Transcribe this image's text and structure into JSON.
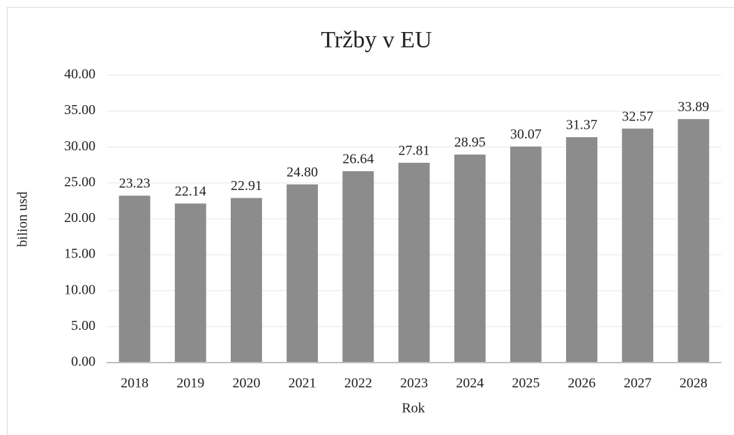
{
  "chart_data": {
    "type": "bar",
    "title": "Tržby v EU",
    "x_label": "Rok",
    "y_label": "bilion usd",
    "categories": [
      "2018",
      "2019",
      "2020",
      "2021",
      "2022",
      "2023",
      "2024",
      "2025",
      "2026",
      "2027",
      "2028"
    ],
    "values": [
      23.23,
      22.14,
      22.91,
      24.8,
      26.64,
      27.81,
      28.95,
      30.07,
      31.37,
      32.57,
      33.89
    ],
    "value_labels": [
      "23.23",
      "22.14",
      "22.91",
      "24.80",
      "26.64",
      "27.81",
      "28.95",
      "30.07",
      "31.37",
      "32.57",
      "33.89"
    ],
    "color": "#8c8c8c",
    "ylim": [
      0,
      40
    ],
    "yticks": [
      {
        "value": 0,
        "label": "0.00"
      },
      {
        "value": 5,
        "label": "5.00"
      },
      {
        "value": 10,
        "label": "10.00"
      },
      {
        "value": 15,
        "label": "15.00"
      },
      {
        "value": 20,
        "label": "20.00"
      },
      {
        "value": 25,
        "label": "25.00"
      },
      {
        "value": 30,
        "label": "30.00"
      },
      {
        "value": 35,
        "label": "35.00"
      },
      {
        "value": 40,
        "label": "40.00"
      }
    ],
    "grid": true
  }
}
